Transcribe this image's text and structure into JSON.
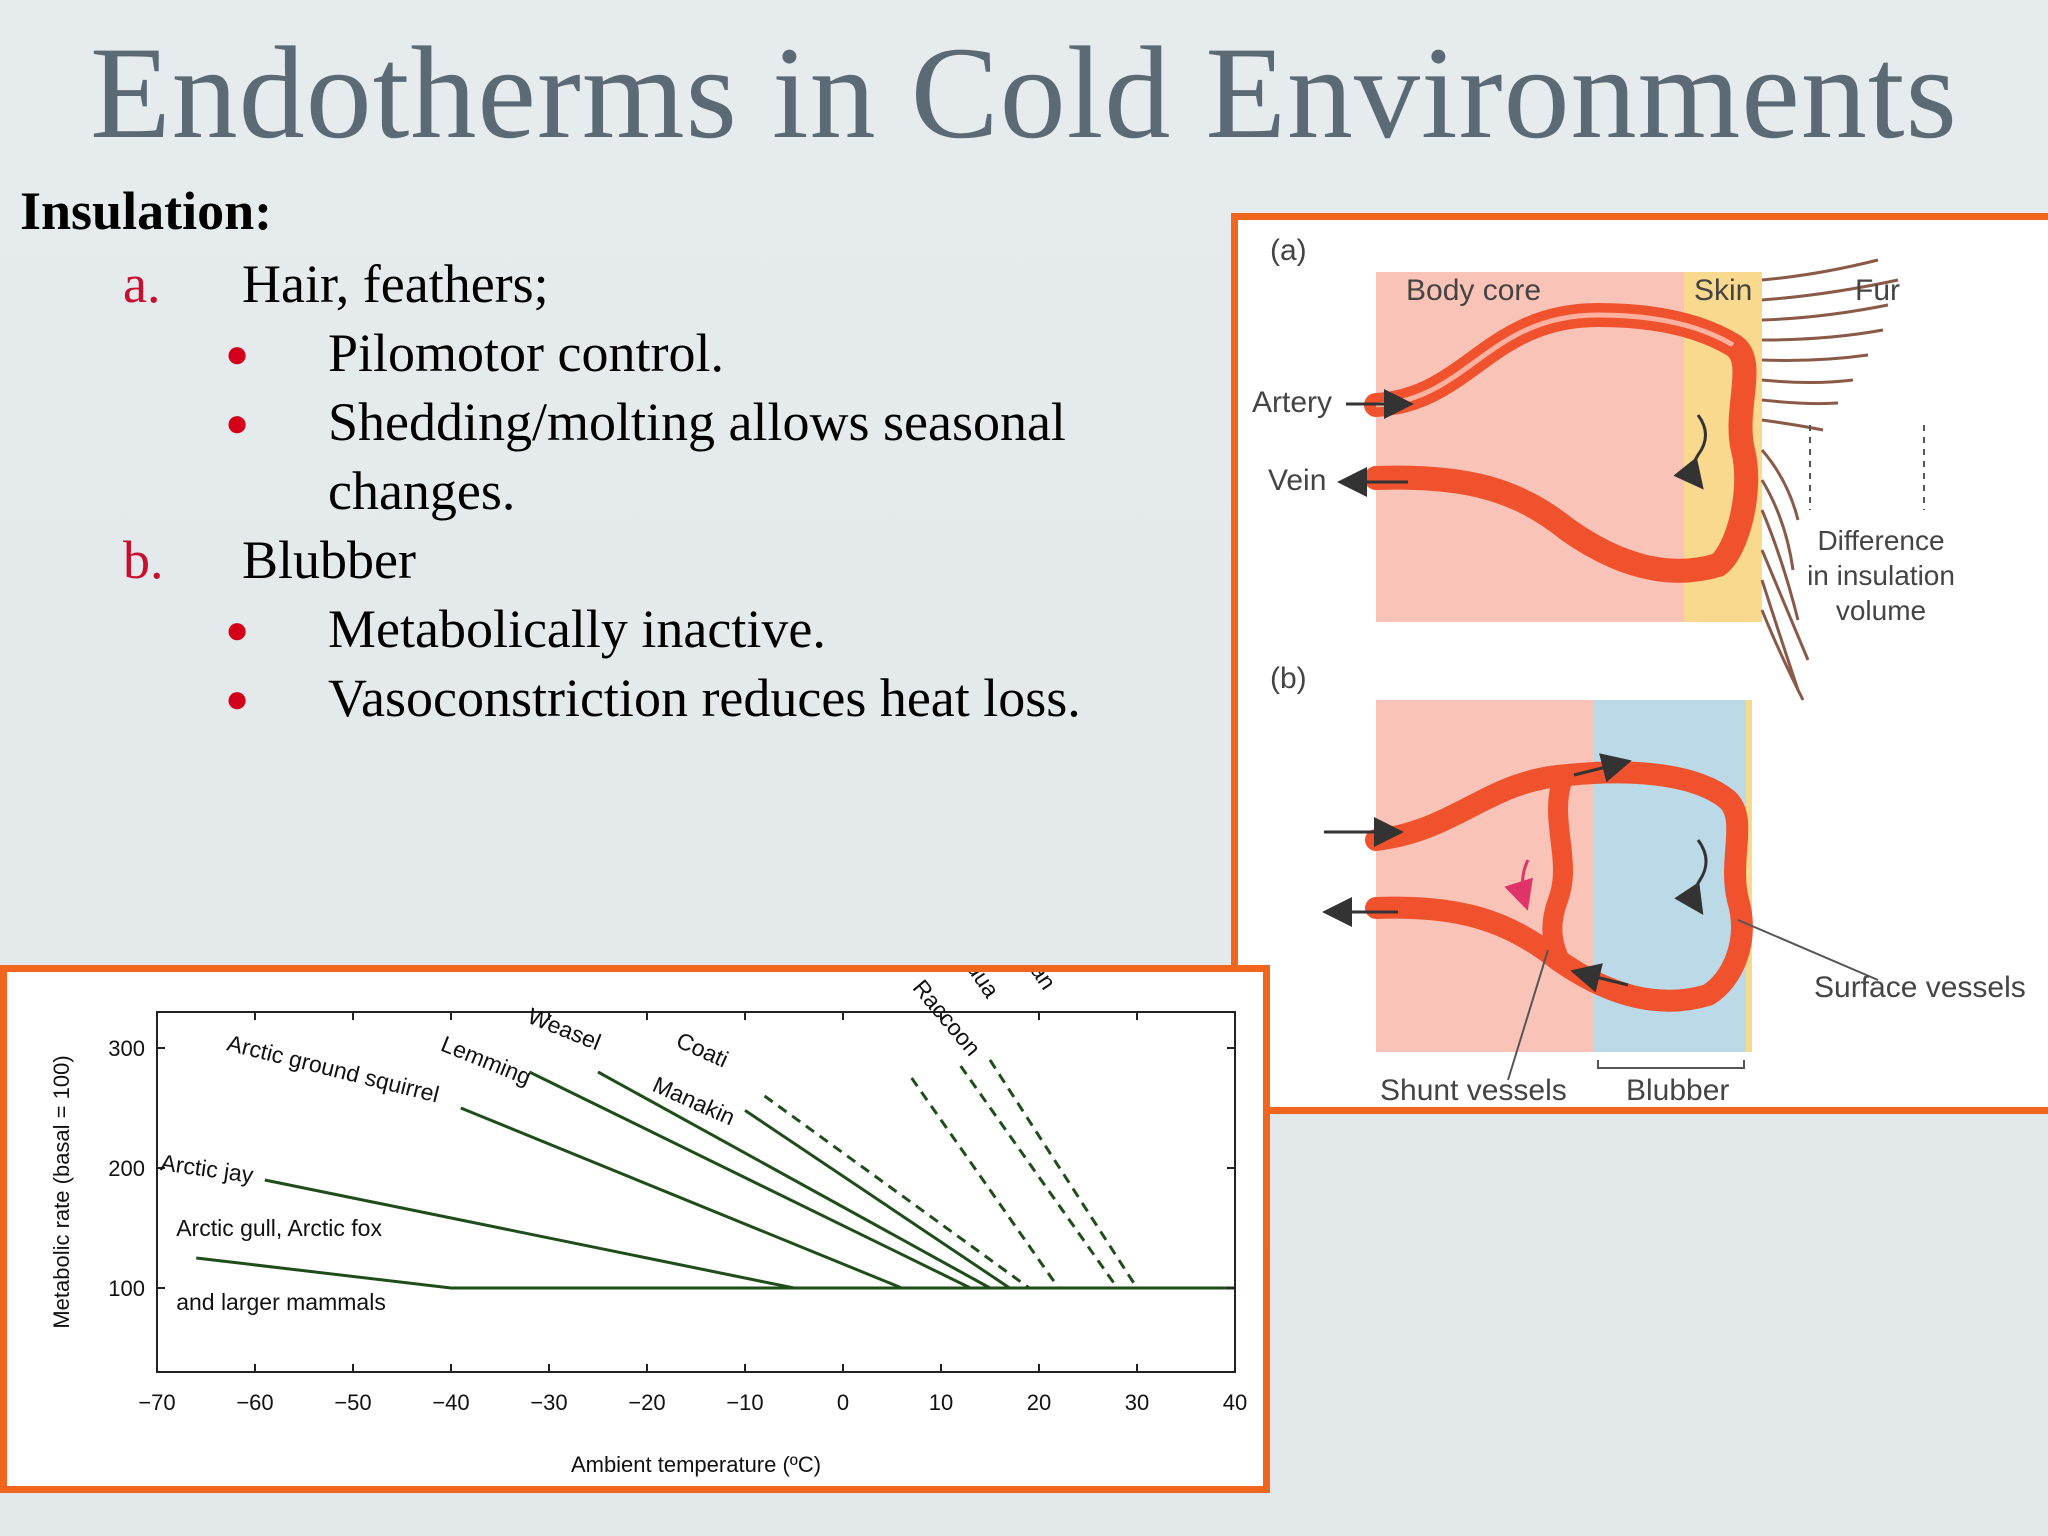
{
  "slide": {
    "title": "Endotherms in Cold Environments",
    "heading": "Insulation:",
    "items": [
      {
        "marker": "a.",
        "text": "Hair, feathers;",
        "bullets": [
          "Pilomotor control.",
          "Shedding/molting allows seasonal changes."
        ]
      },
      {
        "marker": "b.",
        "text": "Blubber",
        "bullets": [
          "Metabolically inactive.",
          "Vasoconstriction reduces heat loss."
        ]
      }
    ]
  },
  "colors": {
    "accent_border": "#f0661e",
    "marker_red": "#c8102e",
    "title_gray": "#5c6a75",
    "line_green": "#1f4d1a"
  },
  "figure": {
    "panel_a_label": "(a)",
    "panel_b_label": "(b)",
    "body_core": "Body core",
    "skin": "Skin",
    "fur": "Fur",
    "artery": "Artery",
    "vein": "Vein",
    "difference_line1": "Difference",
    "difference_line2": "in insulation",
    "difference_line3": "volume",
    "shunt_vessels": "Shunt vessels",
    "blubber": "Blubber",
    "surface_vessels": "Surface vessels"
  },
  "chart_data": {
    "type": "line",
    "xlabel": "Ambient temperature (ºC)",
    "ylabel": "Metabolic rate (basal = 100)",
    "xlim": [
      -70,
      40
    ],
    "ylim": [
      30,
      330
    ],
    "xticks": [
      "−70",
      "−60",
      "−50",
      "−40",
      "−30",
      "−20",
      "−10",
      "0",
      "10",
      "20",
      "30",
      "40"
    ],
    "yticks": [
      "100",
      "200",
      "300"
    ],
    "baseline": 100,
    "series": [
      {
        "name": "Arctic gull, Arctic fox",
        "name2": "and larger mammals",
        "style": "solid",
        "points": [
          [
            -66,
            125
          ],
          [
            -40,
            100
          ],
          [
            40,
            100
          ]
        ]
      },
      {
        "name": "Arctic jay",
        "style": "solid",
        "points": [
          [
            -59,
            190
          ],
          [
            -5,
            100
          ]
        ]
      },
      {
        "name": "Arctic ground squirrel",
        "style": "solid",
        "points": [
          [
            -39,
            250
          ],
          [
            6,
            100
          ]
        ]
      },
      {
        "name": "Weasel",
        "style": "solid",
        "points": [
          [
            -25,
            280
          ],
          [
            15,
            100
          ]
        ]
      },
      {
        "name": "Lemming",
        "style": "solid",
        "points": [
          [
            -32,
            280
          ],
          [
            13,
            100
          ]
        ]
      },
      {
        "name": "Manakin",
        "style": "solid",
        "points": [
          [
            -10,
            248
          ],
          [
            17,
            100
          ]
        ]
      },
      {
        "name": "Coati",
        "style": "dashed",
        "points": [
          [
            -8,
            260
          ],
          [
            19,
            100
          ]
        ]
      },
      {
        "name": "Raccoon",
        "style": "dashed",
        "points": [
          [
            7,
            275
          ],
          [
            22,
            100
          ]
        ]
      },
      {
        "name": "Vidua",
        "style": "dashed",
        "points": [
          [
            12,
            285
          ],
          [
            28,
            100
          ]
        ]
      },
      {
        "name": "African",
        "style": "dashed",
        "points": [
          [
            15,
            290
          ],
          [
            30,
            100
          ]
        ]
      }
    ]
  }
}
